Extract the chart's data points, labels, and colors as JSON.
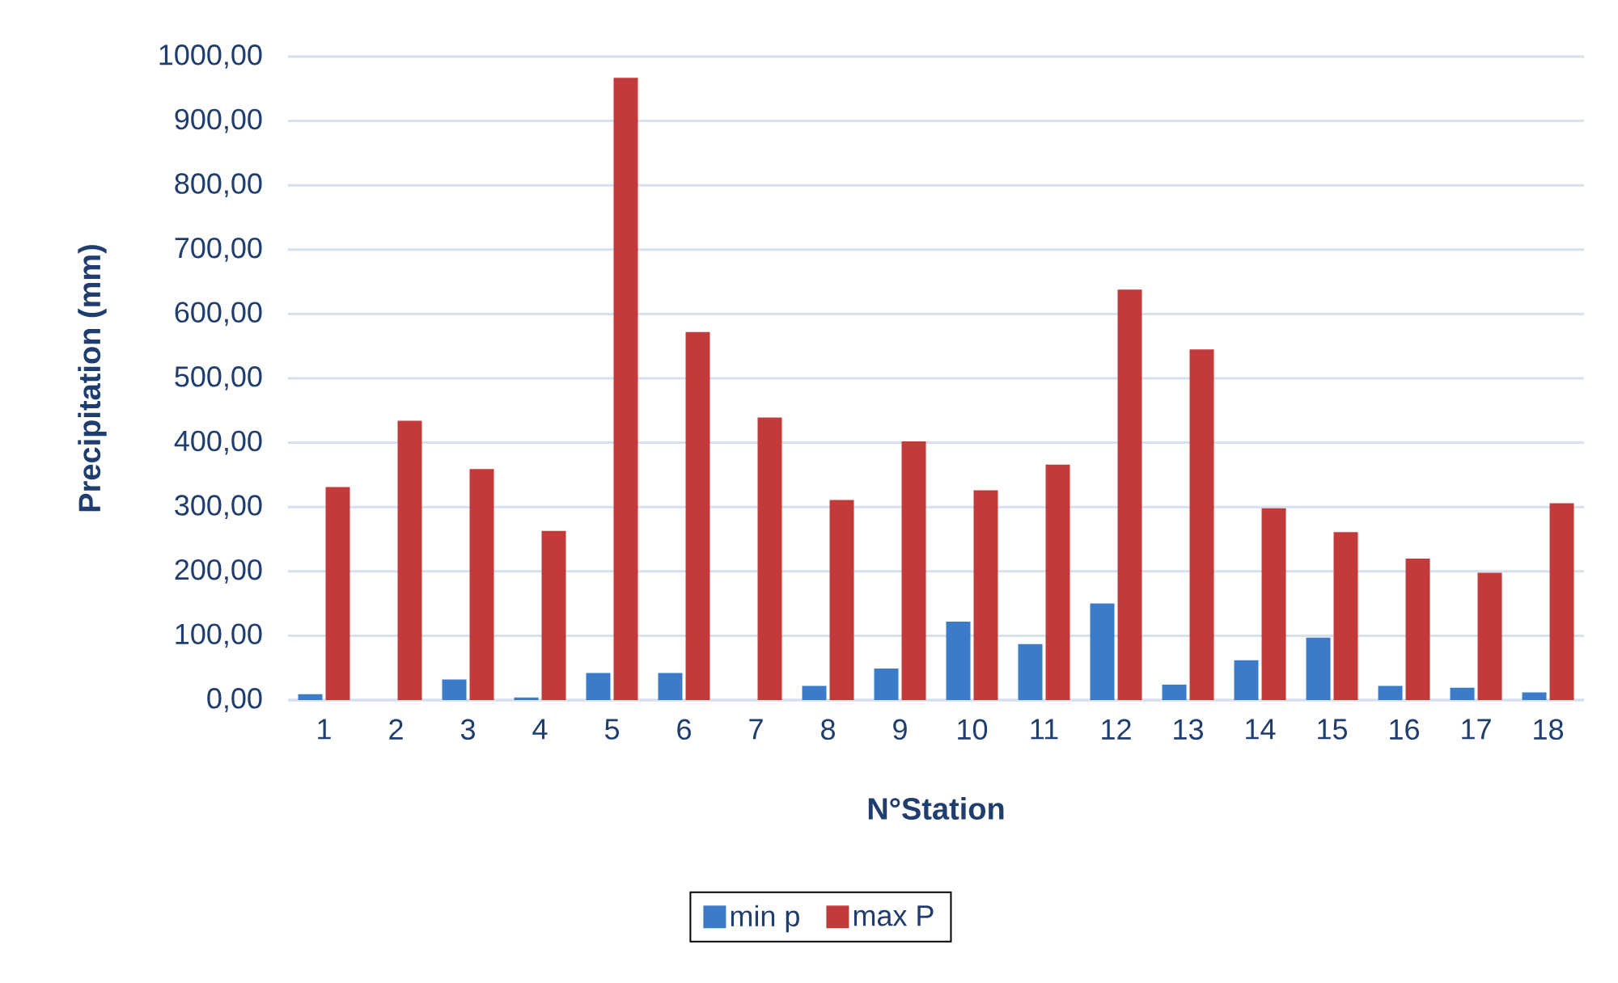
{
  "chart_data": {
    "type": "bar",
    "xlabel": "N°Station",
    "ylabel": "Precipitation (mm)",
    "categories": [
      "1",
      "2",
      "3",
      "4",
      "5",
      "6",
      "7",
      "8",
      "9",
      "10",
      "11",
      "12",
      "13",
      "14",
      "15",
      "16",
      "17",
      "18"
    ],
    "series": [
      {
        "name": "min p",
        "color": "#3b7bc8",
        "values": [
          9,
          0,
          32,
          4,
          42,
          42,
          0,
          22,
          49,
          122,
          87,
          150,
          24,
          62,
          97,
          22,
          19,
          12
        ]
      },
      {
        "name": "max P",
        "color": "#c23a3a",
        "values": [
          331,
          434,
          359,
          263,
          967,
          572,
          439,
          311,
          402,
          326,
          366,
          638,
          545,
          298,
          261,
          220,
          198,
          306
        ]
      }
    ],
    "ylim": [
      0,
      1000
    ],
    "yticks": [
      {
        "value": 0,
        "label": "0,00"
      },
      {
        "value": 100,
        "label": "100,00"
      },
      {
        "value": 200,
        "label": "200,00"
      },
      {
        "value": 300,
        "label": "300,00"
      },
      {
        "value": 400,
        "label": "400,00"
      },
      {
        "value": 500,
        "label": "500,00"
      },
      {
        "value": 600,
        "label": "600,00"
      },
      {
        "value": 700,
        "label": "700,00"
      },
      {
        "value": 800,
        "label": "800,00"
      },
      {
        "value": 900,
        "label": "900,00"
      },
      {
        "value": 1000,
        "label": "1000,00"
      }
    ],
    "grid": "y",
    "legend": "bottom"
  }
}
